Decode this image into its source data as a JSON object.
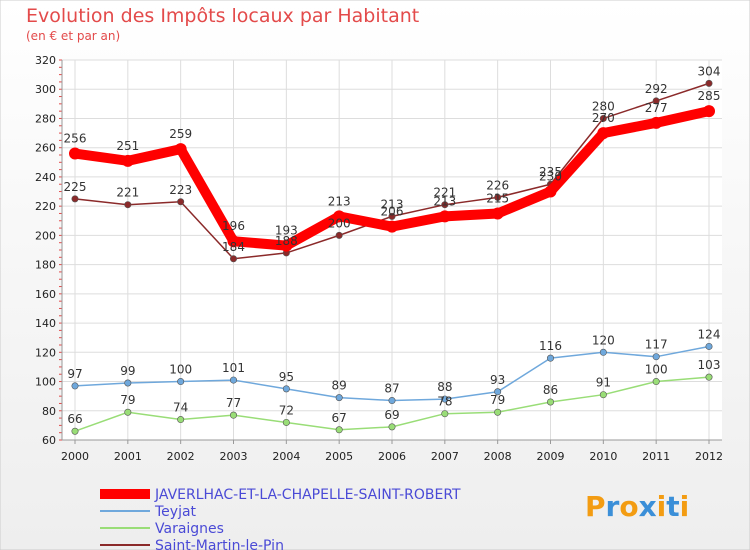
{
  "chart_data": {
    "type": "line",
    "title": "Evolution des Impôts locaux par Habitant",
    "subtitle": "(en € et par an)",
    "xlabel": "",
    "ylabel": "",
    "x": [
      "2000",
      "2001",
      "2002",
      "2003",
      "2004",
      "2005",
      "2006",
      "2007",
      "2008",
      "2009",
      "2010",
      "2011",
      "2012"
    ],
    "ylim": [
      60,
      320
    ],
    "yticks": [
      "60",
      "80",
      "100",
      "120",
      "140",
      "160",
      "180",
      "200",
      "220",
      "240",
      "260",
      "280",
      "300",
      "320"
    ],
    "grid": true,
    "legend": "bottom-left",
    "series": [
      {
        "name": "JAVERLHAC-ET-LA-CHAPELLE-SAINT-ROBERT",
        "color": "#ff0000",
        "values": [
          256,
          251,
          259,
          196,
          193,
          213,
          206,
          213,
          215,
          230,
          270,
          277,
          285
        ],
        "labels": [
          "256",
          "251",
          "259",
          "196",
          "193",
          "213",
          "206",
          "213",
          "215",
          "230",
          "270",
          "277",
          "285"
        ]
      },
      {
        "name": "Teyjat",
        "color": "#6fa8dc",
        "values": [
          97,
          99,
          100,
          101,
          95,
          89,
          87,
          88,
          93,
          116,
          120,
          117,
          124
        ],
        "labels": [
          "97",
          "99",
          "100",
          "101",
          "95",
          "89",
          "87",
          "88",
          "93",
          "116",
          "120",
          "117",
          "124"
        ]
      },
      {
        "name": "Varaignes",
        "color": "#99dd77",
        "values": [
          66,
          79,
          74,
          77,
          72,
          67,
          69,
          78,
          79,
          86,
          91,
          100,
          103
        ],
        "labels": [
          "66",
          "79",
          "74",
          "77",
          "72",
          "67",
          "69",
          "78",
          "79",
          "86",
          "91",
          "100",
          "103"
        ]
      },
      {
        "name": "Saint-Martin-le-Pin",
        "color": "#8b2a2a",
        "values": [
          225,
          221,
          223,
          184,
          188,
          200,
          213,
          221,
          226,
          235,
          280,
          292,
          304
        ],
        "labels": [
          "225",
          "221",
          "223",
          "184",
          "188",
          "200",
          "213",
          "221",
          "226",
          "235",
          "280",
          "292",
          "304"
        ]
      }
    ]
  },
  "brand": {
    "letters": [
      "P",
      "r",
      "o",
      "x",
      "i",
      "t",
      "i"
    ],
    "colors": [
      "#f39c12",
      "#3b8fd8",
      "#f39c12",
      "#3b8fd8",
      "#f39c12",
      "#3b8fd8",
      "#f39c12"
    ]
  }
}
